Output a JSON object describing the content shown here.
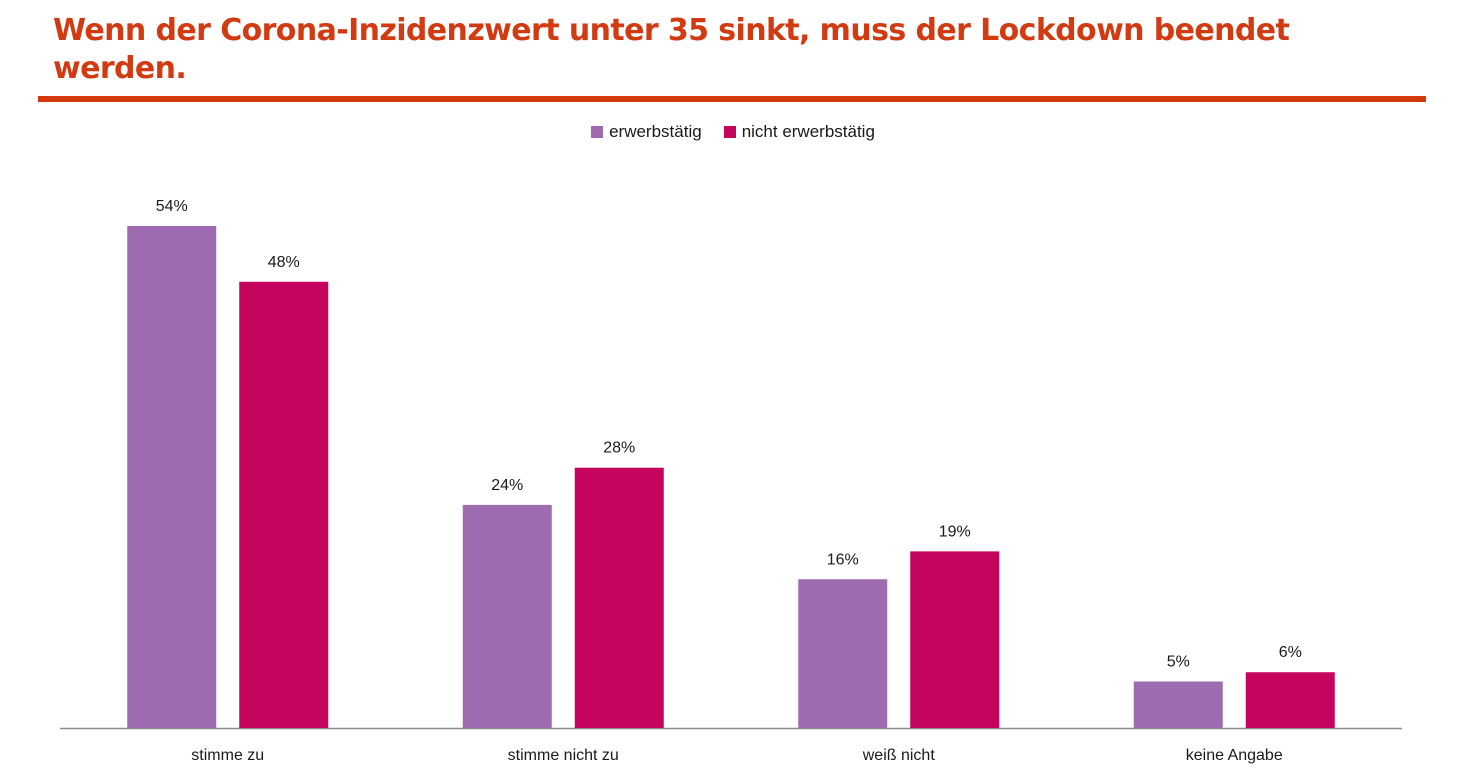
{
  "header": {
    "title_line1": "Wenn der Corona-Inzidenzwert unter 35 sinkt, muss der Lockdown beendet",
    "title_line2": "werden."
  },
  "colors": {
    "title": "#d23a12",
    "rule": "#d4380d",
    "axis": "#898989"
  },
  "chart_data": {
    "type": "bar",
    "title": "Wenn der Corona-Inzidenzwert unter 35 sinkt, muss der Lockdown beendet werden.",
    "xlabel": "",
    "ylabel": "",
    "ylim": [
      0,
      54
    ],
    "grid": false,
    "legend_position": "top-center",
    "categories": [
      "stimme zu",
      "stimme nicht zu",
      "weiß nicht",
      "keine Angabe"
    ],
    "series": [
      {
        "name": "erwerbstätig",
        "color": "#9e6bb0",
        "values": [
          54,
          24,
          16,
          5
        ],
        "labels": [
          "54%",
          "24%",
          "16%",
          "5%"
        ]
      },
      {
        "name": "nicht erwerbstätig",
        "color": "#c5045d",
        "values": [
          48,
          28,
          19,
          6
        ],
        "labels": [
          "48%",
          "28%",
          "19%",
          "6%"
        ]
      }
    ]
  }
}
